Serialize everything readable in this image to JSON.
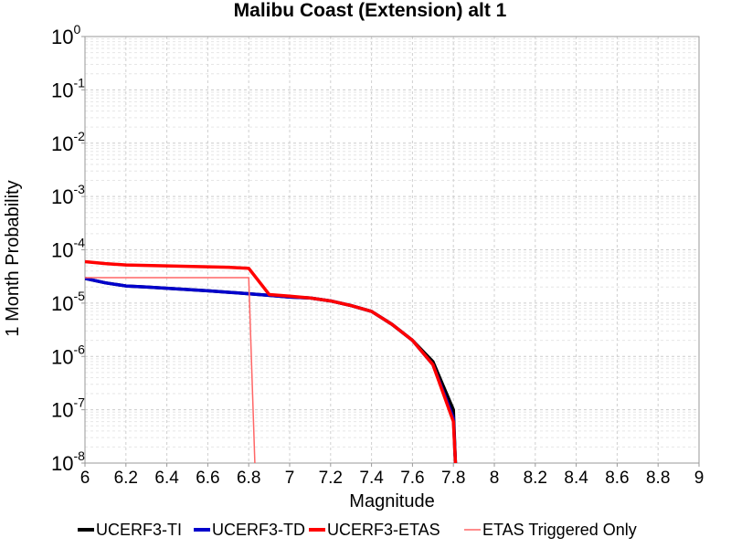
{
  "chart_data": {
    "type": "line",
    "title": "Malibu Coast (Extension) alt 1",
    "xlabel": "Magnitude",
    "ylabel": "1 Month Probability",
    "xlim": [
      6,
      9
    ],
    "ylim": [
      1e-08,
      1
    ],
    "yscale": "log",
    "grid": true,
    "legend_position": "bottom",
    "x_ticks": [
      "6",
      "6.2",
      "6.4",
      "6.6",
      "6.8",
      "7",
      "7.2",
      "7.4",
      "7.6",
      "7.8",
      "8",
      "8.2",
      "8.4",
      "8.6",
      "8.8",
      "9"
    ],
    "y_ticks": [
      {
        "base": "10",
        "exp": "0"
      },
      {
        "base": "10",
        "exp": "-1"
      },
      {
        "base": "10",
        "exp": "-2"
      },
      {
        "base": "10",
        "exp": "-3"
      },
      {
        "base": "10",
        "exp": "-4"
      },
      {
        "base": "10",
        "exp": "-5"
      },
      {
        "base": "10",
        "exp": "-6"
      },
      {
        "base": "10",
        "exp": "-7"
      },
      {
        "base": "10",
        "exp": "-8"
      }
    ],
    "series": [
      {
        "name": "UCERF3-TI",
        "color": "#000000",
        "width": 3.5,
        "points": [
          [
            6.0,
            2.9e-05
          ],
          [
            6.1,
            2.4e-05
          ],
          [
            6.2,
            2.1e-05
          ],
          [
            6.3,
            2e-05
          ],
          [
            6.4,
            1.9e-05
          ],
          [
            6.5,
            1.8e-05
          ],
          [
            6.6,
            1.7e-05
          ],
          [
            6.7,
            1.6e-05
          ],
          [
            6.8,
            1.5e-05
          ],
          [
            6.9,
            1.4e-05
          ],
          [
            7.0,
            1.3e-05
          ],
          [
            7.1,
            1.25e-05
          ],
          [
            7.2,
            1.1e-05
          ],
          [
            7.3,
            9e-06
          ],
          [
            7.4,
            7e-06
          ],
          [
            7.5,
            4e-06
          ],
          [
            7.6,
            2e-06
          ],
          [
            7.7,
            8e-07
          ],
          [
            7.8,
            1e-07
          ],
          [
            7.81,
            1e-08
          ]
        ]
      },
      {
        "name": "UCERF3-TD",
        "color": "#0000cc",
        "width": 3.5,
        "points": [
          [
            6.0,
            2.9e-05
          ],
          [
            6.1,
            2.4e-05
          ],
          [
            6.2,
            2.1e-05
          ],
          [
            6.3,
            2e-05
          ],
          [
            6.4,
            1.9e-05
          ],
          [
            6.5,
            1.8e-05
          ],
          [
            6.6,
            1.7e-05
          ],
          [
            6.7,
            1.6e-05
          ],
          [
            6.8,
            1.5e-05
          ],
          [
            6.9,
            1.4e-05
          ],
          [
            7.0,
            1.3e-05
          ],
          [
            7.1,
            1.25e-05
          ],
          [
            7.2,
            1.1e-05
          ],
          [
            7.3,
            9e-06
          ],
          [
            7.4,
            7e-06
          ],
          [
            7.5,
            4e-06
          ],
          [
            7.6,
            2e-06
          ],
          [
            7.7,
            7e-07
          ],
          [
            7.8,
            7e-08
          ],
          [
            7.81,
            1e-08
          ]
        ]
      },
      {
        "name": "UCERF3-ETAS",
        "color": "#ff0000",
        "width": 3.5,
        "points": [
          [
            6.0,
            6e-05
          ],
          [
            6.1,
            5.5e-05
          ],
          [
            6.2,
            5.2e-05
          ],
          [
            6.3,
            5.1e-05
          ],
          [
            6.4,
            5e-05
          ],
          [
            6.5,
            4.9e-05
          ],
          [
            6.6,
            4.8e-05
          ],
          [
            6.7,
            4.7e-05
          ],
          [
            6.8,
            4.5e-05
          ],
          [
            6.9,
            1.45e-05
          ],
          [
            7.0,
            1.35e-05
          ],
          [
            7.1,
            1.25e-05
          ],
          [
            7.2,
            1.1e-05
          ],
          [
            7.3,
            9e-06
          ],
          [
            7.4,
            7e-06
          ],
          [
            7.5,
            4e-06
          ],
          [
            7.6,
            2e-06
          ],
          [
            7.7,
            7e-07
          ],
          [
            7.8,
            6e-08
          ],
          [
            7.81,
            1e-08
          ]
        ]
      },
      {
        "name": "ETAS Triggered Only",
        "color": "#ff6666",
        "width": 1.5,
        "points": [
          [
            6.0,
            3e-05
          ],
          [
            6.8,
            3e-05
          ],
          [
            6.83,
            1e-08
          ]
        ]
      }
    ]
  }
}
